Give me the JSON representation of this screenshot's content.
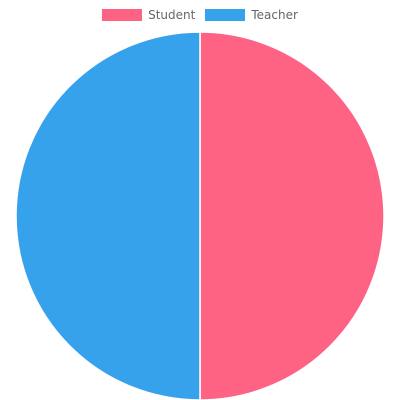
{
  "chart_data": {
    "type": "pie",
    "categories": [
      "Student",
      "Teacher"
    ],
    "values": [
      50,
      50
    ],
    "colors": [
      "#ff6384",
      "#36a2eb"
    ],
    "legend": "top",
    "title": "",
    "start_angle_deg": -90
  }
}
